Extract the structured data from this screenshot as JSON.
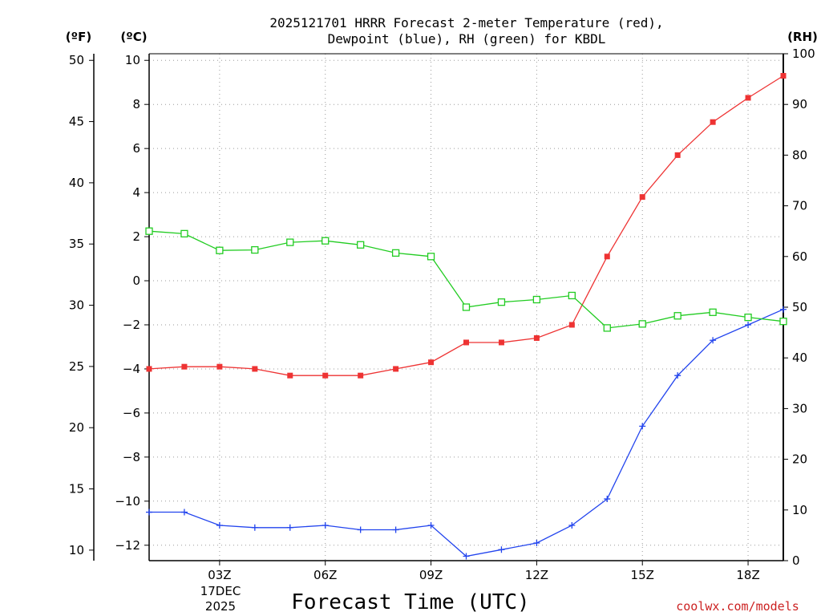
{
  "chart_data": {
    "type": "line",
    "title": [
      "2025121701 HRRR Forecast 2-meter Temperature (red),",
      "Dewpoint (blue), RH (green) for KBDL"
    ],
    "xlabel": "Forecast Time (UTC)",
    "footer": "coolwx.com/models",
    "date_label": [
      "17DEC",
      "2025"
    ],
    "left_outer_axis": {
      "unit": "(ºF)",
      "ticks": [
        10,
        15,
        20,
        25,
        30,
        35,
        40,
        45,
        50
      ]
    },
    "left_inner_axis": {
      "unit": "(ºC)",
      "ylim": [
        -12.7,
        10.3
      ],
      "ticks": [
        -12,
        -10,
        -8,
        -6,
        -4,
        -2,
        0,
        2,
        4,
        6,
        8,
        10
      ]
    },
    "right_axis": {
      "unit": "(RH)",
      "ylim": [
        0,
        100
      ],
      "ticks": [
        0,
        10,
        20,
        30,
        40,
        50,
        60,
        70,
        80,
        90,
        100
      ]
    },
    "x": [
      1,
      2,
      3,
      4,
      5,
      6,
      7,
      8,
      9,
      10,
      11,
      12,
      13,
      14,
      15,
      16,
      17,
      18,
      19
    ],
    "xlim": [
      1,
      19
    ],
    "xticks": [
      {
        "x": 3,
        "label": "03Z"
      },
      {
        "x": 6,
        "label": "06Z"
      },
      {
        "x": 9,
        "label": "09Z"
      },
      {
        "x": 12,
        "label": "12Z"
      },
      {
        "x": 15,
        "label": "15Z"
      },
      {
        "x": 18,
        "label": "18Z"
      }
    ],
    "series": [
      {
        "name": "Temperature",
        "axis": "C",
        "color": "#ee3333",
        "marker": "filled-square",
        "values": [
          -4.0,
          -3.9,
          -3.9,
          -4.0,
          -4.3,
          -4.3,
          -4.3,
          -4.0,
          -3.7,
          -2.8,
          -2.8,
          -2.6,
          -2.0,
          1.1,
          3.8,
          5.7,
          7.2,
          8.3,
          9.3
        ]
      },
      {
        "name": "Dewpoint",
        "axis": "C",
        "color": "#2244ee",
        "marker": "plus",
        "values": [
          -10.5,
          -10.5,
          -11.1,
          -11.2,
          -11.2,
          -11.1,
          -11.3,
          -11.3,
          -11.1,
          -12.5,
          -12.2,
          -11.9,
          -11.1,
          -9.9,
          -6.6,
          -4.3,
          -2.7,
          -2.0,
          -1.3
        ]
      },
      {
        "name": "RH",
        "axis": "RH",
        "color": "#22cc22",
        "marker": "open-square",
        "values": [
          65.0,
          64.5,
          61.2,
          61.3,
          62.8,
          63.1,
          62.3,
          60.7,
          60.0,
          50.0,
          51.0,
          51.5,
          52.3,
          45.9,
          46.7,
          48.3,
          49.0,
          48.0,
          47.2
        ]
      }
    ],
    "grid": true
  }
}
